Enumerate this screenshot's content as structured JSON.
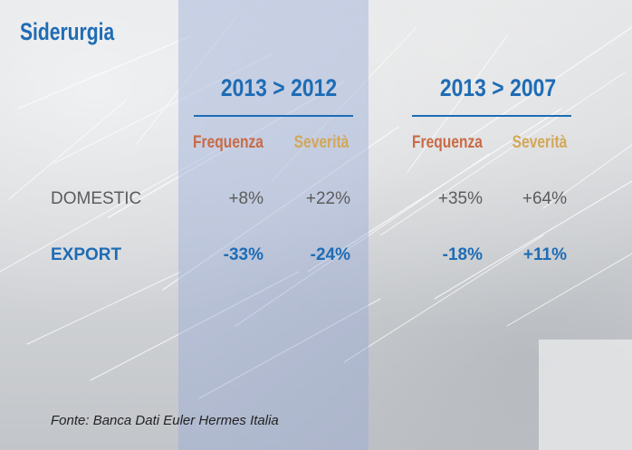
{
  "title": "Siderurgia",
  "periods": [
    "2013 > 2012",
    "2013 > 2007"
  ],
  "columns": {
    "frequency": "Frequenza",
    "severity": "Severità"
  },
  "rows": [
    {
      "label": "DOMESTIC",
      "p1_frequency": "+8%",
      "p1_severity": "+22%",
      "p2_frequency": "+35%",
      "p2_severity": "+64%"
    },
    {
      "label": "EXPORT",
      "p1_frequency": "-33%",
      "p1_severity": "-24%",
      "p2_frequency": "-18%",
      "p2_severity": "+11%"
    }
  ],
  "source": "Fonte: Banca Dati Euler Hermes Italia",
  "colors": {
    "accent": "#1e6cb5",
    "frequency": "#c96a45",
    "severity": "#d2a757",
    "highlight_band": "#96aad7"
  }
}
